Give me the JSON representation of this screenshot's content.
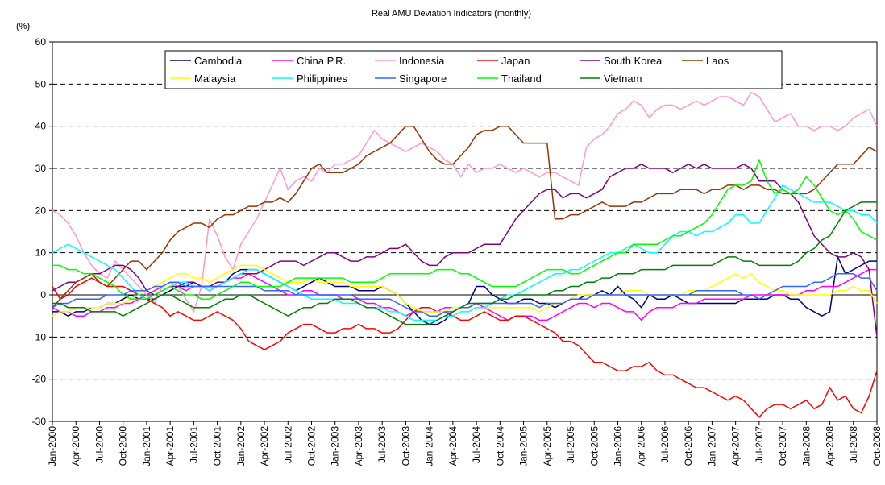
{
  "chart_data": {
    "type": "line",
    "title": "Real AMU Deviation Indicators (monthly)",
    "y_label": "(%)",
    "categories": [
      "Jan-2000",
      null,
      null,
      "Apr-2000",
      null,
      null,
      "Jul-2000",
      null,
      null,
      "Oct-2000",
      null,
      null,
      "Jan-2001",
      null,
      null,
      "Apr-2001",
      null,
      null,
      "Jul-2001",
      null,
      null,
      "Oct-2001",
      null,
      null,
      "Jan-2002",
      null,
      null,
      "Apr-2002",
      null,
      null,
      "Jul-2002",
      null,
      null,
      "Oct-2002",
      null,
      null,
      "Jan-2003",
      null,
      null,
      "Apr-2003",
      null,
      null,
      "Jul-2003",
      null,
      null,
      "Oct-2003",
      null,
      null,
      "Jan-2004",
      null,
      null,
      "Apr-2004",
      null,
      null,
      "Jul-2004",
      null,
      null,
      "Oct-2004",
      null,
      null,
      "Jan-2005",
      null,
      null,
      "Apr-2005",
      null,
      null,
      "Jul-2005",
      null,
      null,
      "Oct-2005",
      null,
      null,
      "Jan-2006",
      null,
      null,
      "Apr-2006",
      null,
      null,
      "Jul-2006",
      null,
      null,
      "Oct-2006",
      null,
      null,
      "Jan-2007",
      null,
      null,
      "Apr-2007",
      null,
      null,
      "Jul-2007",
      null,
      null,
      "Oct-2007",
      null,
      null,
      "Jan-2008",
      null,
      null,
      "Apr-2008",
      null,
      null,
      "Jul-2008",
      null,
      null,
      "Oct-2008"
    ],
    "ylim": [
      -30,
      60
    ],
    "yticks": [
      -30,
      -20,
      -10,
      0,
      10,
      20,
      30,
      40,
      50,
      60
    ],
    "grid": true,
    "series": [
      {
        "name": "Cambodia",
        "color": "#000080",
        "values": [
          -4,
          -4,
          -5,
          -4,
          -4,
          -3,
          -3,
          -2,
          -2,
          -1,
          0,
          -1,
          -1,
          -1,
          0,
          1,
          2,
          2,
          3,
          2,
          2,
          2,
          3,
          5,
          6,
          6,
          6,
          5,
          4,
          3,
          2,
          1,
          2,
          3,
          4,
          3,
          2,
          2,
          2,
          1,
          1,
          1,
          2,
          1,
          0,
          -2,
          -4,
          -6,
          -7,
          -7,
          -6,
          -4,
          -3,
          -2,
          2,
          2,
          0,
          -1,
          -2,
          -2,
          -1,
          -1,
          -2,
          -2,
          -3,
          -2,
          -1,
          -1,
          0,
          0,
          1,
          0,
          2,
          0,
          -1,
          -3,
          0,
          -1,
          -1,
          0,
          -1,
          -2,
          -2,
          -2,
          -2,
          -2,
          -2,
          -2,
          -1,
          -1,
          -1,
          -1,
          0,
          0,
          -1,
          -1,
          -3,
          -4,
          -5,
          -4,
          9,
          5,
          6,
          7,
          8,
          8
        ]
      },
      {
        "name": "China P.R.",
        "color": "#ff00ff",
        "values": [
          -3,
          -4,
          -4,
          -5,
          -5,
          -4,
          -4,
          -3,
          -3,
          -2,
          -2,
          -1,
          0,
          1,
          2,
          3,
          2,
          1,
          2,
          2,
          1,
          2,
          3,
          4,
          4,
          5,
          4,
          3,
          2,
          1,
          0,
          0,
          1,
          1,
          0,
          0,
          0,
          -1,
          -1,
          -1,
          -2,
          -2,
          -3,
          -3,
          -4,
          -5,
          -4,
          -4,
          -4,
          -4,
          -3,
          -3,
          -3,
          -3,
          -2,
          -3,
          -4,
          -5,
          -6,
          -5,
          -5,
          -5,
          -6,
          -6,
          -5,
          -4,
          -3,
          -2,
          -2,
          -3,
          -2,
          -2,
          -3,
          -4,
          -4,
          -6,
          -4,
          -3,
          -3,
          -3,
          -2,
          -2,
          -2,
          -1,
          -1,
          -1,
          -1,
          -1,
          -1,
          0,
          0,
          0,
          0,
          0,
          0,
          0,
          1,
          1,
          2,
          2,
          2,
          3,
          4,
          5,
          6,
          6
        ]
      },
      {
        "name": "Indonesia",
        "color": "#ff99cc",
        "values": [
          20,
          19,
          17,
          14,
          10,
          7,
          5,
          4,
          8,
          6,
          4,
          2,
          0,
          -2,
          2,
          3,
          2,
          -1,
          -4,
          2,
          18,
          14,
          9,
          6,
          12,
          15,
          18,
          22,
          26,
          30,
          25,
          27,
          28,
          27,
          30,
          29,
          31,
          31,
          32,
          33,
          36,
          39,
          37,
          36,
          35,
          34,
          35,
          36,
          35,
          34,
          32,
          31,
          28,
          31,
          29,
          30,
          30,
          31,
          30,
          29,
          30,
          29,
          28,
          29,
          29,
          28,
          27,
          26,
          35,
          37,
          38,
          40,
          43,
          44,
          46,
          45,
          42,
          44,
          45,
          45,
          44,
          45,
          46,
          45,
          46,
          47,
          47,
          46,
          45,
          48,
          47,
          44,
          41,
          42,
          43,
          40,
          40,
          39,
          40,
          40,
          39,
          40,
          42,
          43,
          44,
          40
        ]
      },
      {
        "name": "Japan",
        "color": "#ff0000",
        "values": [
          2,
          -1,
          0,
          2,
          3,
          4,
          3,
          2,
          2,
          2,
          1,
          0,
          -1,
          -2,
          -3,
          -5,
          -4,
          -5,
          -6,
          -6,
          -5,
          -4,
          -5,
          -6,
          -8,
          -11,
          -12,
          -13,
          -12,
          -11,
          -9,
          -8,
          -7,
          -7,
          -8,
          -9,
          -9,
          -8,
          -8,
          -7,
          -8,
          -8,
          -9,
          -9,
          -8,
          -6,
          -4,
          -3,
          -3,
          -4,
          -4,
          -5,
          -6,
          -6,
          -5,
          -4,
          -5,
          -6,
          -6,
          -5,
          -5,
          -6,
          -7,
          -8,
          -9,
          -11,
          -11,
          -12,
          -14,
          -16,
          -16,
          -17,
          -18,
          -18,
          -17,
          -17,
          -16,
          -18,
          -19,
          -19,
          -20,
          -21,
          -22,
          -22,
          -23,
          -24,
          -25,
          -24,
          -25,
          -27,
          -29,
          -27,
          -26,
          -26,
          -27,
          -26,
          -25,
          -27,
          -26,
          -22,
          -25,
          -24,
          -27,
          -28,
          -24,
          -18
        ]
      },
      {
        "name": "South Korea",
        "color": "#800080",
        "values": [
          1,
          2,
          3,
          3,
          4,
          5,
          5,
          6,
          7,
          7,
          6,
          4,
          1,
          0,
          1,
          2,
          2,
          3,
          3,
          2,
          2,
          3,
          3,
          4,
          5,
          5,
          5,
          6,
          7,
          8,
          8,
          8,
          7,
          8,
          9,
          10,
          10,
          9,
          8,
          8,
          9,
          9,
          10,
          11,
          11,
          12,
          10,
          8,
          7,
          7,
          9,
          10,
          10,
          10,
          11,
          12,
          12,
          12,
          15,
          18,
          20,
          22,
          24,
          25,
          25,
          23,
          24,
          24,
          23,
          24,
          25,
          28,
          29,
          30,
          30,
          31,
          30,
          30,
          30,
          29,
          30,
          31,
          30,
          31,
          30,
          30,
          30,
          30,
          31,
          30,
          27,
          27,
          27,
          25,
          24,
          22,
          18,
          14,
          12,
          10,
          9,
          9,
          10,
          9,
          6,
          -10
        ]
      },
      {
        "name": "Laos",
        "color": "#993300",
        "values": [
          -3,
          -1,
          1,
          3,
          4,
          5,
          3,
          2,
          4,
          6,
          8,
          8,
          6,
          8,
          10,
          13,
          15,
          16,
          17,
          17,
          16,
          18,
          19,
          19,
          20,
          21,
          21,
          22,
          22,
          23,
          22,
          24,
          27,
          30,
          31,
          29,
          29,
          29,
          30,
          31,
          33,
          34,
          35,
          36,
          38,
          40,
          40,
          37,
          34,
          32,
          31,
          31,
          33,
          35,
          38,
          39,
          39,
          40,
          40,
          38,
          36,
          36,
          36,
          36,
          18,
          18,
          19,
          19,
          20,
          21,
          22,
          21,
          21,
          21,
          22,
          22,
          23,
          24,
          24,
          24,
          25,
          25,
          25,
          24,
          25,
          25,
          26,
          26,
          25,
          26,
          26,
          25,
          25,
          24,
          24,
          24,
          24,
          25,
          27,
          29,
          31,
          31,
          31,
          33,
          35,
          34
        ]
      },
      {
        "name": "Malaysia",
        "color": "#ffff00",
        "values": [
          -5,
          -4,
          -4,
          -3,
          -3,
          -3,
          -3,
          -2,
          -2,
          -2,
          -1,
          0,
          1,
          2,
          3,
          4,
          5,
          5,
          4,
          4,
          3,
          4,
          5,
          6,
          7,
          7,
          7,
          6,
          5,
          4,
          3,
          3,
          3,
          4,
          3,
          3,
          3,
          3,
          2,
          2,
          2,
          2,
          2,
          1,
          0,
          -2,
          -3,
          -4,
          -4,
          -4,
          -4,
          -3,
          -3,
          -3,
          -3,
          -3,
          -3,
          -3,
          -3,
          -3,
          -3,
          -3,
          -4,
          -3,
          -2,
          -2,
          -1,
          0,
          0,
          0,
          0,
          0,
          0,
          1,
          1,
          1,
          0,
          0,
          0,
          0,
          0,
          1,
          1,
          1,
          2,
          3,
          4,
          5,
          4,
          5,
          3,
          2,
          1,
          1,
          0,
          0,
          0,
          0,
          0,
          0,
          1,
          1,
          2,
          1,
          1,
          -2
        ]
      },
      {
        "name": "Philippines",
        "color": "#00ffff",
        "values": [
          10,
          11,
          12,
          11,
          10,
          9,
          8,
          7,
          6,
          4,
          2,
          0,
          -1,
          0,
          1,
          2,
          3,
          3,
          2,
          2,
          1,
          2,
          3,
          4,
          5,
          6,
          6,
          5,
          4,
          3,
          2,
          1,
          0,
          -1,
          -1,
          -1,
          -1,
          -2,
          -2,
          -2,
          -3,
          -3,
          -3,
          -4,
          -4,
          -5,
          -6,
          -6,
          -6,
          -6,
          -5,
          -5,
          -4,
          -4,
          -3,
          -3,
          -2,
          -1,
          0,
          0,
          1,
          2,
          3,
          4,
          5,
          5,
          6,
          6,
          7,
          8,
          9,
          10,
          10,
          11,
          12,
          11,
          10,
          10,
          12,
          14,
          15,
          15,
          14,
          15,
          15,
          16,
          17,
          19,
          19,
          17,
          17,
          20,
          23,
          26,
          25,
          24,
          23,
          22,
          22,
          22,
          21,
          20,
          20,
          19,
          19,
          17
        ]
      },
      {
        "name": "Singapore",
        "color": "#3366ff",
        "values": [
          -3,
          -2,
          -2,
          -1,
          -1,
          -1,
          -1,
          0,
          0,
          0,
          1,
          1,
          1,
          2,
          2,
          3,
          3,
          2,
          2,
          2,
          2,
          2,
          2,
          2,
          2,
          2,
          2,
          1,
          1,
          1,
          1,
          0,
          0,
          0,
          0,
          0,
          0,
          0,
          0,
          -1,
          -1,
          -1,
          -1,
          -1,
          -2,
          -3,
          -4,
          -4,
          -5,
          -5,
          -4,
          -4,
          -3,
          -3,
          -2,
          -2,
          -2,
          -2,
          -2,
          -2,
          -2,
          -2,
          -3,
          -2,
          -2,
          -2,
          -1,
          -1,
          -1,
          0,
          0,
          0,
          0,
          0,
          0,
          0,
          0,
          0,
          0,
          0,
          0,
          0,
          1,
          1,
          1,
          1,
          1,
          1,
          0,
          0,
          -1,
          0,
          1,
          2,
          2,
          2,
          2,
          3,
          3,
          4,
          5,
          5,
          5,
          4,
          4,
          1
        ]
      },
      {
        "name": "Thailand",
        "color": "#00ff00",
        "values": [
          7,
          7,
          6,
          6,
          5,
          5,
          4,
          3,
          2,
          0,
          -1,
          -1,
          -1,
          0,
          1,
          2,
          1,
          0,
          0,
          -1,
          -1,
          0,
          1,
          2,
          3,
          3,
          2,
          2,
          2,
          2,
          3,
          4,
          4,
          4,
          4,
          4,
          4,
          4,
          3,
          3,
          3,
          3,
          4,
          5,
          5,
          5,
          5,
          5,
          5,
          6,
          6,
          6,
          5,
          5,
          4,
          3,
          2,
          2,
          2,
          2,
          3,
          4,
          5,
          6,
          6,
          6,
          5,
          5,
          6,
          7,
          8,
          9,
          10,
          10,
          12,
          12,
          12,
          12,
          13,
          14,
          14,
          15,
          16,
          17,
          19,
          22,
          25,
          26,
          26,
          27,
          32,
          27,
          24,
          25,
          24,
          25,
          28,
          26,
          23,
          20,
          19,
          20,
          18,
          15,
          14,
          13
        ]
      },
      {
        "name": "Vietnam",
        "color": "#008000",
        "values": [
          -2,
          -2,
          -3,
          -3,
          -3,
          -4,
          -4,
          -4,
          -4,
          -5,
          -4,
          -3,
          -2,
          -1,
          0,
          0,
          -1,
          -2,
          -3,
          -3,
          -3,
          -2,
          -1,
          -1,
          0,
          0,
          -1,
          -2,
          -3,
          -4,
          -5,
          -4,
          -3,
          -3,
          -2,
          -2,
          -1,
          -1,
          -1,
          -2,
          -3,
          -3,
          -4,
          -5,
          -6,
          -7,
          -7,
          -7,
          -7,
          -6,
          -5,
          -4,
          -3,
          -2,
          -2,
          -2,
          -2,
          -1,
          -1,
          0,
          0,
          0,
          0,
          0,
          1,
          1,
          2,
          2,
          3,
          3,
          4,
          4,
          5,
          5,
          5,
          6,
          6,
          6,
          6,
          7,
          7,
          7,
          7,
          7,
          7,
          8,
          9,
          9,
          8,
          8,
          7,
          7,
          7,
          7,
          7,
          8,
          10,
          11,
          13,
          14,
          17,
          20,
          21,
          22,
          22,
          22
        ]
      }
    ]
  }
}
